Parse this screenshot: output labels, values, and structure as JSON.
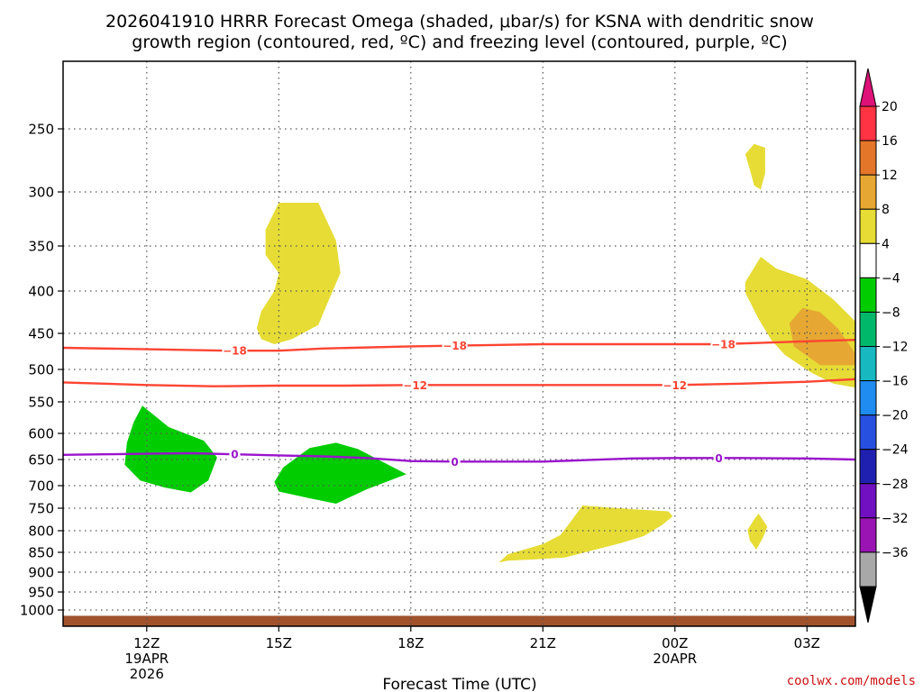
{
  "chart_data": {
    "type": "time-height",
    "title_line1": "2026041910 HRRR Forecast Omega (shaded, μbar/s) for KSNA with dendritic snow",
    "title_line2": "growth region (contoured, red, ºC) and freezing level (contoured, purple, ºC)",
    "xlabel": "Forecast Time (UTC)",
    "credit": "coolwx.com/models",
    "x_range_hours": [
      -1.9,
      16.1
    ],
    "x_ticks": [
      {
        "hour": 0,
        "label": "12Z",
        "sub": [
          "19APR",
          "2026"
        ]
      },
      {
        "hour": 3,
        "label": "15Z",
        "sub": []
      },
      {
        "hour": 6,
        "label": "18Z",
        "sub": []
      },
      {
        "hour": 9,
        "label": "21Z",
        "sub": []
      },
      {
        "hour": 12,
        "label": "00Z",
        "sub": [
          "20APR"
        ]
      },
      {
        "hour": 15,
        "label": "03Z",
        "sub": []
      }
    ],
    "y_range_hpa": [
      1028,
      200
    ],
    "y_ticks": [
      250,
      300,
      350,
      400,
      450,
      500,
      550,
      600,
      650,
      700,
      750,
      800,
      850,
      900,
      950,
      1000
    ],
    "ground_hpa_range": [
      1010,
      1028
    ],
    "ground_color": "#a0522d",
    "colorbar": {
      "labels": [
        "20",
        "16",
        "12",
        "8",
        "4",
        "−4",
        "−8",
        "−12",
        "−16",
        "−20",
        "−24",
        "−28",
        "−32",
        "−36"
      ],
      "colors": [
        "#ff3344",
        "#e4762a",
        "#e6a832",
        "#e6dc35",
        "#ffffff",
        "#00cc00",
        "#00b86a",
        "#18b8c0",
        "#1e8cf0",
        "#2850e0",
        "#2020b0",
        "#7010c0",
        "#9a14b4",
        "#a8a8a8"
      ],
      "top_arrow_color": "#dd1177",
      "bottom_arrow_color": "#000000"
    },
    "contours": [
      {
        "name": "dgz-minus18",
        "value": -18,
        "label": "−18",
        "color": "#ff4433",
        "points": [
          [
            -1.9,
            470
          ],
          [
            0,
            472
          ],
          [
            1.8,
            474
          ],
          [
            3,
            474
          ],
          [
            4,
            471
          ],
          [
            6,
            468
          ],
          [
            8,
            466
          ],
          [
            9,
            465
          ],
          [
            11,
            465
          ],
          [
            12,
            465
          ],
          [
            13,
            465
          ],
          [
            14,
            463
          ],
          [
            15,
            461
          ],
          [
            16.1,
            459
          ]
        ],
        "label_hours": [
          2.0,
          7.0,
          13.1
        ]
      },
      {
        "name": "dgz-minus12",
        "value": -12,
        "label": "−12",
        "color": "#ff4433",
        "points": [
          [
            -1.9,
            520
          ],
          [
            0,
            524
          ],
          [
            1.5,
            526
          ],
          [
            3,
            525
          ],
          [
            4.5,
            525
          ],
          [
            6,
            524
          ],
          [
            9,
            524
          ],
          [
            12,
            524
          ],
          [
            13.5,
            522
          ],
          [
            15,
            519
          ],
          [
            16.1,
            515
          ]
        ],
        "label_hours": [
          6.1,
          12.0
        ]
      },
      {
        "name": "freezing-level",
        "value": 0,
        "label": "0",
        "color": "#9a14cc",
        "points": [
          [
            -1.9,
            641
          ],
          [
            -1,
            640
          ],
          [
            0,
            639
          ],
          [
            1,
            638
          ],
          [
            2,
            640
          ],
          [
            3,
            642
          ],
          [
            4,
            644
          ],
          [
            5,
            647
          ],
          [
            6,
            653
          ],
          [
            7,
            654
          ],
          [
            9,
            654
          ],
          [
            10,
            651
          ],
          [
            11,
            648
          ],
          [
            12,
            647
          ],
          [
            13.5,
            647
          ],
          [
            15,
            648
          ],
          [
            16.1,
            650
          ]
        ],
        "label_hours": [
          2.0,
          7.0,
          13.0
        ]
      }
    ],
    "omega_regions": [
      {
        "name": "omega-region-1",
        "level": "4",
        "color": "#e6dc35",
        "points": [
          [
            3,
            310
          ],
          [
            3.9,
            310
          ],
          [
            4.3,
            345
          ],
          [
            4.4,
            380
          ],
          [
            4.1,
            415
          ],
          [
            3.9,
            440
          ],
          [
            3.3,
            458
          ],
          [
            2.9,
            465
          ],
          [
            2.6,
            458
          ],
          [
            2.5,
            444
          ],
          [
            2.6,
            424
          ],
          [
            2.9,
            400
          ],
          [
            3.0,
            380
          ],
          [
            2.7,
            360
          ],
          [
            2.7,
            335
          ]
        ]
      },
      {
        "name": "omega-region-2",
        "level": "4",
        "color": "#e6dc35",
        "points": [
          [
            13.8,
            262
          ],
          [
            14.05,
            265
          ],
          [
            14.05,
            285
          ],
          [
            13.95,
            298
          ],
          [
            13.8,
            295
          ],
          [
            13.7,
            282
          ],
          [
            13.6,
            270
          ]
        ]
      },
      {
        "name": "omega-region-3",
        "level": "4",
        "color": "#e6dc35",
        "points": [
          [
            13.95,
            362
          ],
          [
            14.3,
            375
          ],
          [
            15.0,
            387
          ],
          [
            15.6,
            410
          ],
          [
            16.1,
            436
          ],
          [
            16.1,
            528
          ],
          [
            15.6,
            522
          ],
          [
            15.1,
            505
          ],
          [
            14.5,
            480
          ],
          [
            14.2,
            460
          ],
          [
            13.9,
            433
          ],
          [
            13.6,
            402
          ],
          [
            13.6,
            390
          ]
        ]
      },
      {
        "name": "omega-region-4",
        "level": "8",
        "color": "#e6a832",
        "points": [
          [
            14.9,
            420
          ],
          [
            15.3,
            425
          ],
          [
            15.7,
            444
          ],
          [
            16.1,
            478
          ],
          [
            16.1,
            494
          ],
          [
            15.3,
            494
          ],
          [
            14.7,
            468
          ],
          [
            14.6,
            438
          ]
        ]
      },
      {
        "name": "omega-region-5",
        "level": "4",
        "color": "#e6dc35",
        "points": [
          [
            9.9,
            744
          ],
          [
            11,
            752
          ],
          [
            11.85,
            757
          ],
          [
            11.95,
            768
          ],
          [
            11.7,
            788
          ],
          [
            11.3,
            812
          ],
          [
            10.8,
            828
          ],
          [
            9.5,
            863
          ],
          [
            8.8,
            868
          ],
          [
            8.2,
            871
          ],
          [
            8.0,
            876
          ],
          [
            8.2,
            855
          ],
          [
            9.0,
            831
          ],
          [
            9.4,
            810
          ],
          [
            9.6,
            784
          ]
        ]
      },
      {
        "name": "omega-region-6",
        "level": "4",
        "color": "#e6dc35",
        "points": [
          [
            13.9,
            762
          ],
          [
            14.1,
            791
          ],
          [
            14.0,
            816
          ],
          [
            13.85,
            844
          ],
          [
            13.7,
            822
          ],
          [
            13.65,
            798
          ],
          [
            13.8,
            775
          ]
        ]
      },
      {
        "name": "omega-region-7",
        "level": "-4",
        "color": "#00cc00",
        "points": [
          [
            -0.1,
            556
          ],
          [
            0.5,
            590
          ],
          [
            1.3,
            614
          ],
          [
            1.6,
            646
          ],
          [
            1.4,
            690
          ],
          [
            1.0,
            715
          ],
          [
            0.4,
            704
          ],
          [
            -0.15,
            690
          ],
          [
            -0.5,
            660
          ],
          [
            -0.45,
            618
          ],
          [
            -0.3,
            583
          ]
        ]
      },
      {
        "name": "omega-region-8",
        "level": "-4",
        "color": "#00cc00",
        "points": [
          [
            3.7,
            628
          ],
          [
            4.3,
            618
          ],
          [
            4.8,
            630
          ],
          [
            5.9,
            678
          ],
          [
            5.0,
            708
          ],
          [
            4.3,
            740
          ],
          [
            3.7,
            728
          ],
          [
            3.0,
            713
          ],
          [
            2.9,
            693
          ],
          [
            3.1,
            665
          ]
        ]
      }
    ]
  }
}
